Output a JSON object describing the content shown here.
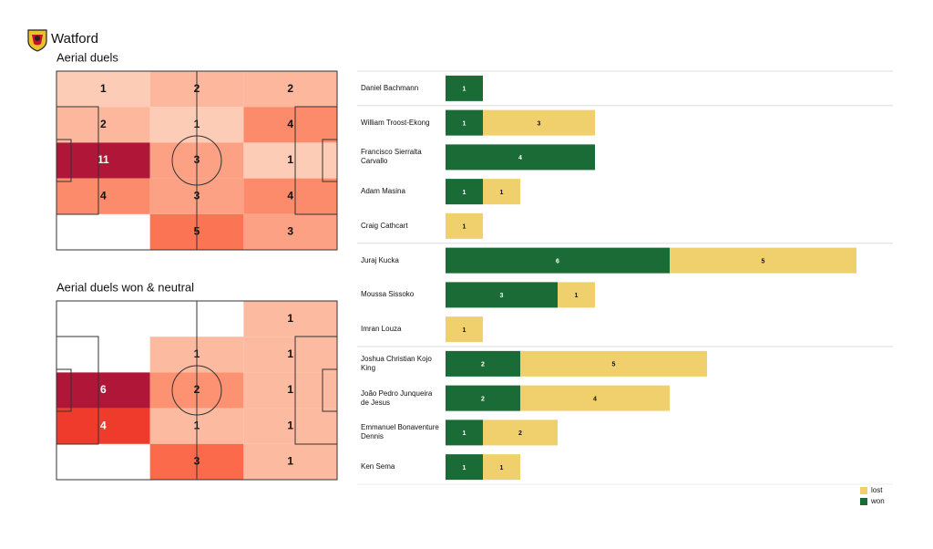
{
  "header": {
    "title": "Watford"
  },
  "chart_data": [
    {
      "type": "heatmap",
      "title": "Aerial duels",
      "values": [
        [
          1,
          2,
          2
        ],
        [
          2,
          1,
          4
        ],
        [
          11,
          3,
          1
        ],
        [
          4,
          3,
          4
        ],
        [
          null,
          5,
          3
        ]
      ],
      "colorscale": [
        "#fee0d2",
        "#fcbba1",
        "#fc9272",
        "#fb6a4a",
        "#ef3b2c",
        "#cb181d",
        "#b01638"
      ]
    },
    {
      "type": "heatmap",
      "title": "Aerial duels won & neutral",
      "values": [
        [
          null,
          null,
          1
        ],
        [
          null,
          1,
          1
        ],
        [
          6,
          2,
          1
        ],
        [
          4,
          1,
          1
        ],
        [
          null,
          3,
          1
        ]
      ],
      "colorscale": [
        "#fee0d2",
        "#fcbba1",
        "#fc9272",
        "#fb6a4a",
        "#ef3b2c",
        "#cb181d",
        "#b01638"
      ]
    },
    {
      "type": "bar",
      "orientation": "horizontal",
      "stacked": true,
      "categories": [
        "Daniel Bachmann",
        "William Troost-Ekong",
        "Francisco Sierralta Carvallo",
        "Adam Masina",
        "Craig Cathcart",
        "Juraj Kucka",
        "Moussa Sissoko",
        "Imran Louza",
        "Joshua Christian Kojo King",
        "João Pedro Junqueira de Jesus",
        "Emmanuel Bonaventure Dennis",
        "Ken Sema"
      ],
      "series": [
        {
          "name": "won",
          "color": "#1a6b35",
          "values": [
            1,
            1,
            4,
            1,
            null,
            6,
            3,
            null,
            2,
            2,
            1,
            1
          ]
        },
        {
          "name": "lost",
          "color": "#f0d06c",
          "values": [
            null,
            3,
            null,
            1,
            1,
            5,
            1,
            1,
            5,
            4,
            2,
            1
          ]
        }
      ],
      "legend": "lower right"
    }
  ]
}
